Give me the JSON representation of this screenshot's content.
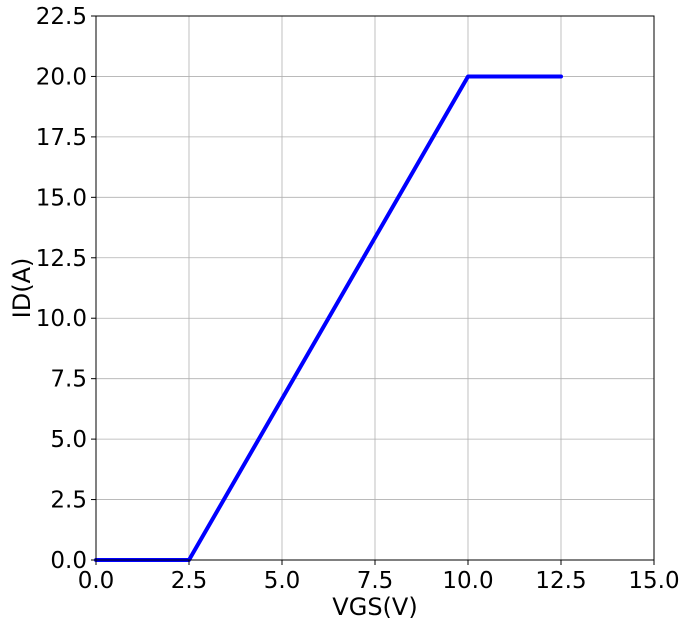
{
  "chart_data": {
    "type": "line",
    "title": "",
    "xlabel": "VGS(V)",
    "ylabel": "ID(A)",
    "xlim": [
      0,
      15
    ],
    "ylim": [
      0,
      22.5
    ],
    "grid": true,
    "x_ticks": [
      0,
      2.5,
      5,
      7.5,
      10,
      12.5,
      15
    ],
    "y_ticks": [
      0,
      2.5,
      5,
      7.5,
      10,
      12.5,
      15,
      17.5,
      20,
      22.5
    ],
    "x_tick_labels": [
      "0.0",
      "2.5",
      "5.0",
      "7.5",
      "10.0",
      "12.5",
      "15.0"
    ],
    "y_tick_labels": [
      "0.0",
      "2.5",
      "5.0",
      "7.5",
      "10.0",
      "12.5",
      "15.0",
      "17.5",
      "20.0",
      "22.5"
    ],
    "series": [
      {
        "color": "#0000ff",
        "x": [
          0,
          2.5,
          10,
          12.5
        ],
        "y": [
          0,
          0,
          20,
          20
        ]
      }
    ]
  }
}
